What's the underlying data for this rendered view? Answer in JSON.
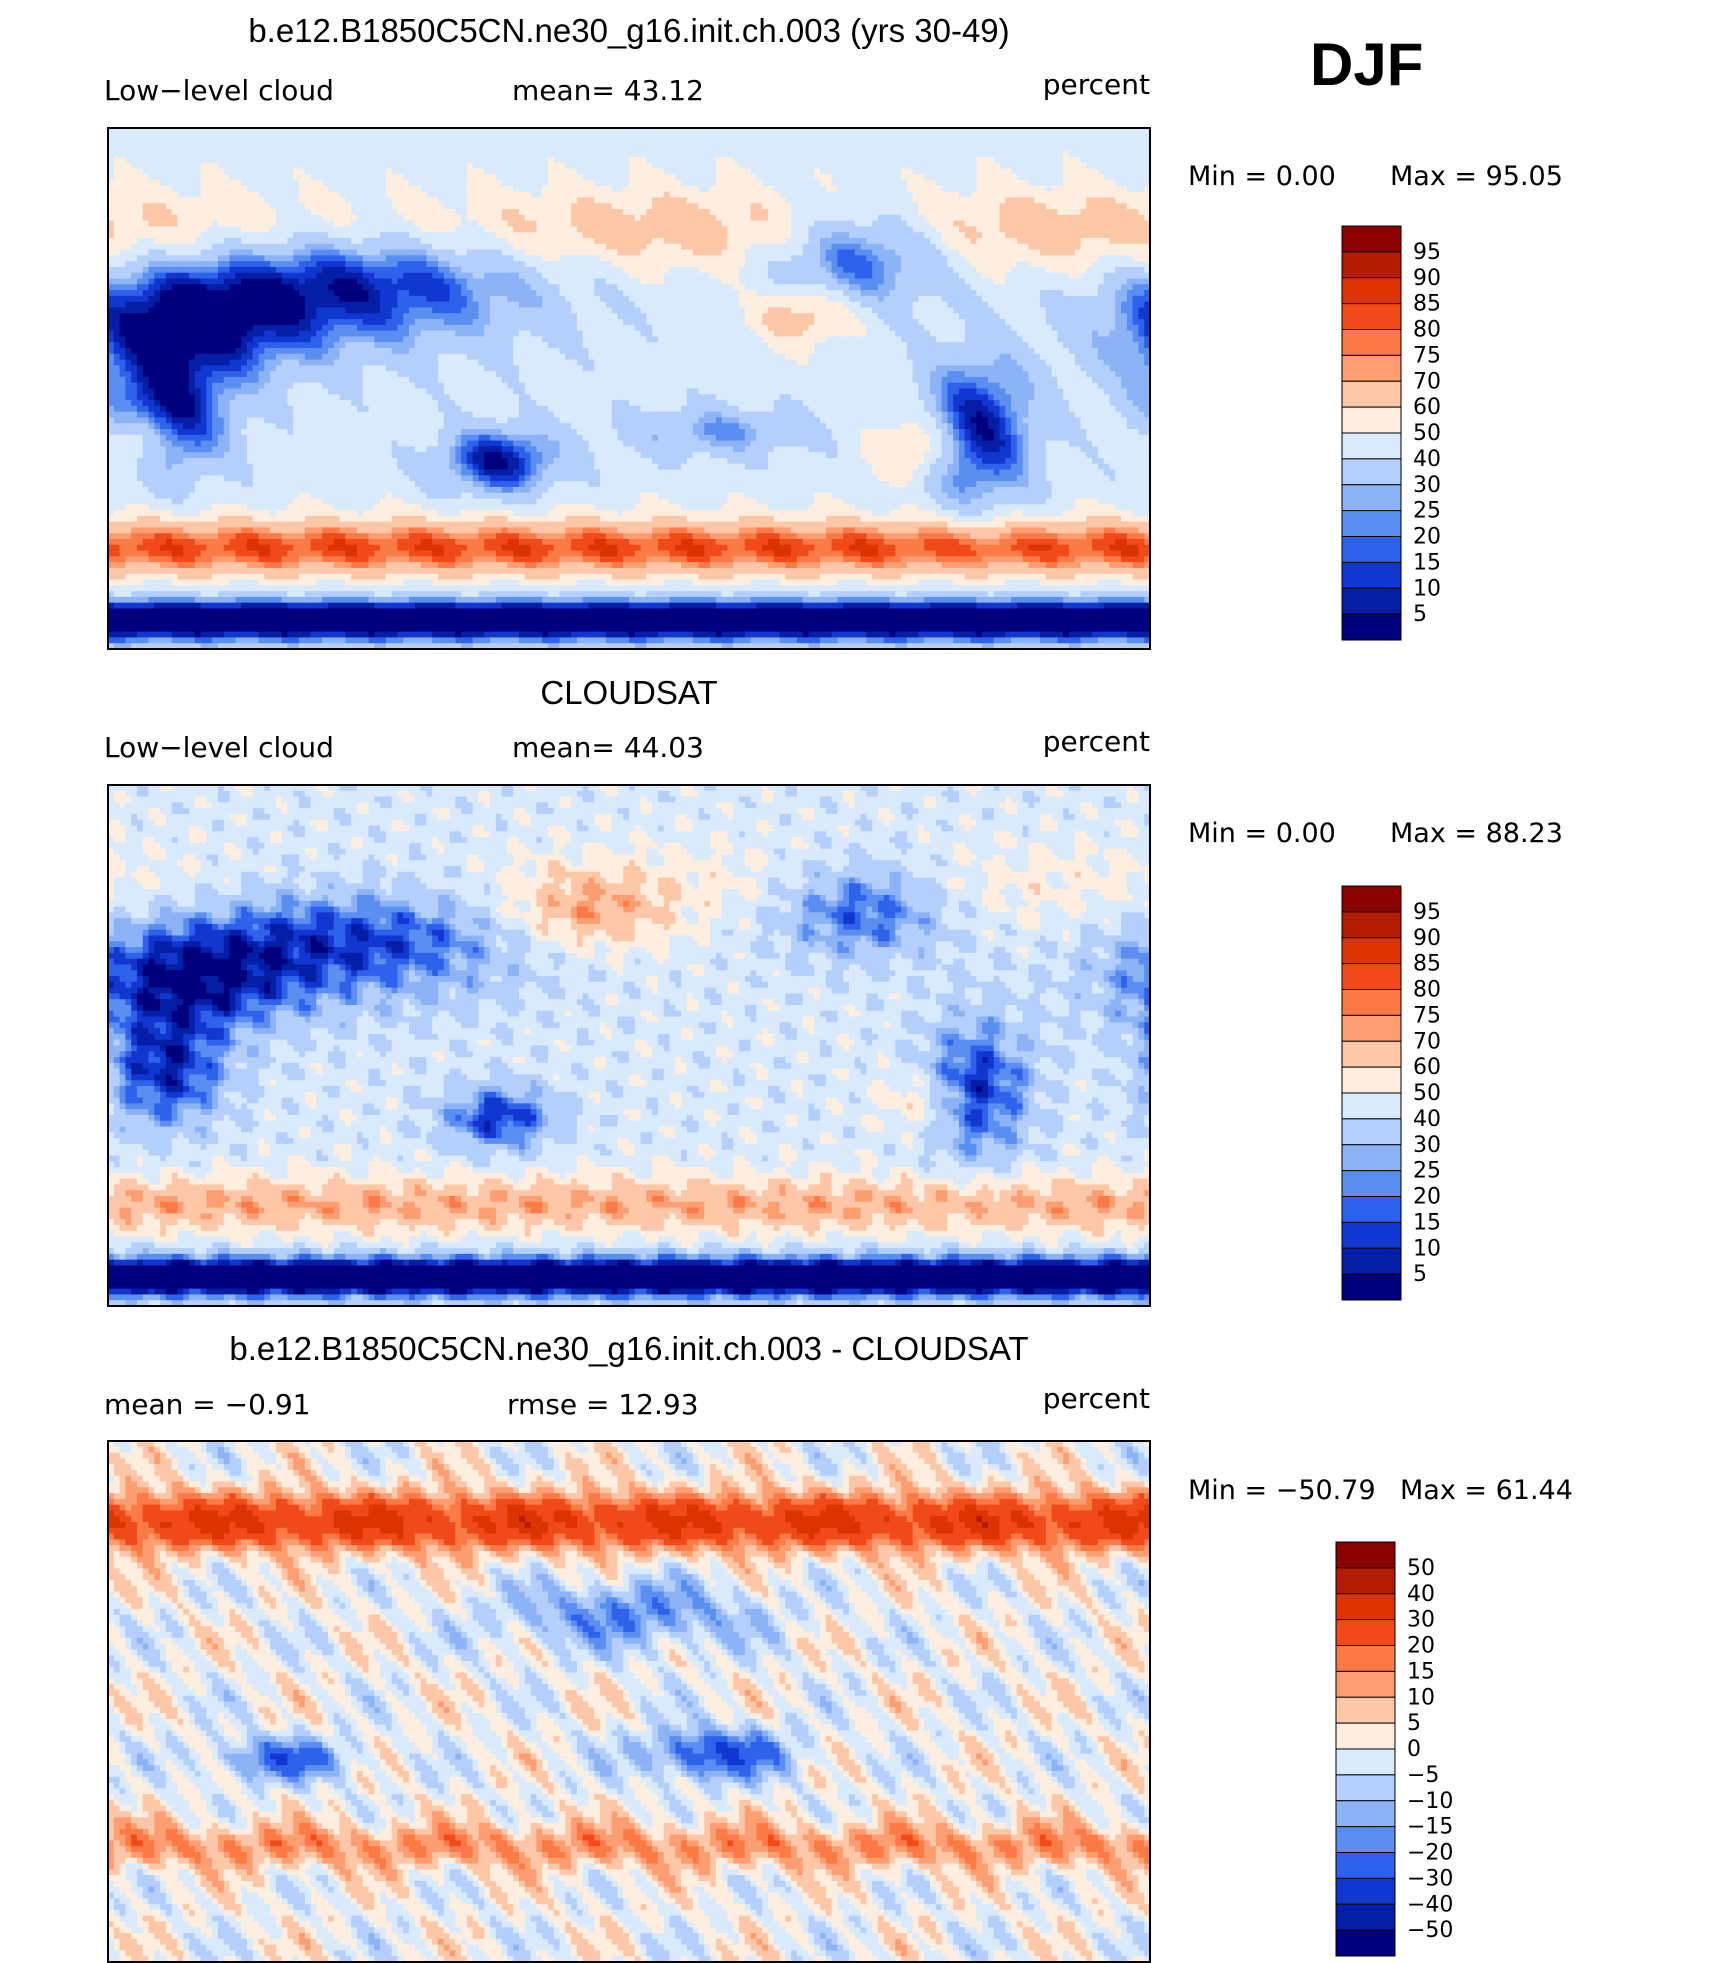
{
  "season_label": "DJF",
  "chart_data": [
    {
      "type": "heatmap",
      "title": "b.e12.B1850C5CN.ne30_g16.init.ch.003 (yrs 30-49)",
      "left_label": "Low−level cloud",
      "center_label": "mean=   43.12",
      "units": "percent",
      "min_label": "Min  =     0.00",
      "max_label": "Max  =    95.05",
      "colorbar_levels": [
        "95",
        "90",
        "85",
        "80",
        "75",
        "70",
        "60",
        "50",
        "40",
        "30",
        "25",
        "20",
        "15",
        "10",
        "5"
      ],
      "colors": [
        "#8b0000",
        "#b31b00",
        "#dc3300",
        "#f04a1a",
        "#fb7a46",
        "#fd9e72",
        "#fec7a8",
        "#fdeee0",
        "#d8eafc",
        "#b4cffb",
        "#8cb3f5",
        "#5a8ef0",
        "#2e62ea",
        "#1237d0",
        "#041ea5",
        "#00007e"
      ],
      "pattern": "model"
    },
    {
      "type": "heatmap",
      "title": "CLOUDSAT",
      "left_label": "Low−level cloud",
      "center_label": "mean=   44.03",
      "units": "percent",
      "min_label": "Min  =     0.00",
      "max_label": "Max  =    88.23",
      "colorbar_levels": [
        "95",
        "90",
        "85",
        "80",
        "75",
        "70",
        "60",
        "50",
        "40",
        "30",
        "25",
        "20",
        "15",
        "10",
        "5"
      ],
      "colors": [
        "#8b0000",
        "#b31b00",
        "#dc3300",
        "#f04a1a",
        "#fb7a46",
        "#fd9e72",
        "#fec7a8",
        "#fdeee0",
        "#d8eafc",
        "#b4cffb",
        "#8cb3f5",
        "#5a8ef0",
        "#2e62ea",
        "#1237d0",
        "#041ea5",
        "#00007e"
      ],
      "pattern": "obs"
    },
    {
      "type": "heatmap",
      "title": "b.e12.B1850C5CN.ne30_g16.init.ch.003 - CLOUDSAT",
      "left_label": "mean  =    −0.91",
      "center_label": "rmse  =     12.93",
      "units": "percent",
      "min_label": "Min  = −50.79",
      "max_label": "Max  =    61.44",
      "colorbar_levels": [
        "50",
        "40",
        "30",
        "20",
        "15",
        "10",
        "5",
        "0",
        "−5",
        "−10",
        "−15",
        "−20",
        "−30",
        "−40",
        "−50"
      ],
      "colors": [
        "#8b0000",
        "#b31b00",
        "#dc3300",
        "#f04a1a",
        "#fb7a46",
        "#fd9e72",
        "#fec7a8",
        "#fdeee0",
        "#d8eafc",
        "#b4cffb",
        "#8cb3f5",
        "#5a8ef0",
        "#2e62ea",
        "#1237d0",
        "#041ea5",
        "#00007e"
      ],
      "pattern": "diff"
    }
  ]
}
